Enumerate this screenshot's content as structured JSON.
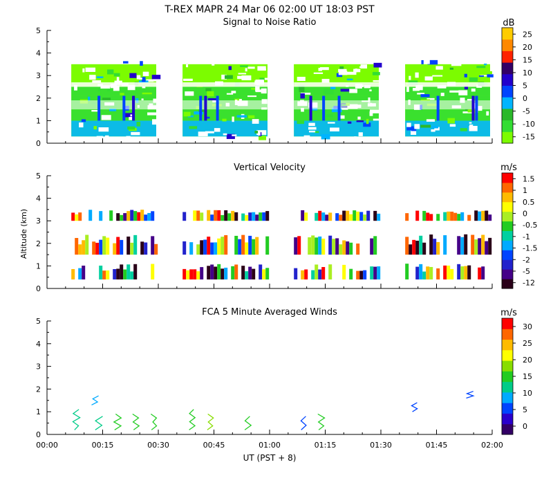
{
  "header": {
    "title": "T-REX   MAPR 24 Mar 06  02:00 UT  18:03  PST"
  },
  "shared_axes": {
    "xlabel": "UT  (PST + 8)",
    "ylabel": "Altitude (km)",
    "x_ticks": [
      "00:00",
      "00:15",
      "00:30",
      "00:45",
      "01:00",
      "01:15",
      "01:30",
      "01:45",
      "02:00"
    ],
    "x_range_min": [
      0,
      120
    ],
    "y_ticks": [
      "0",
      "1",
      "2",
      "3",
      "4",
      "5"
    ],
    "y_range_km": [
      0,
      5
    ]
  },
  "chart_data": [
    {
      "type": "heatmap",
      "title": "Signal to Noise Ratio",
      "units": "dB",
      "colorbar_ticks": [
        "25",
        "20",
        "15",
        "10",
        "5",
        "0",
        "-5",
        "-10",
        "-15"
      ],
      "colorbar_range": [
        -18,
        28
      ],
      "data_segments_min": [
        [
          6,
          30
        ],
        [
          36,
          60
        ],
        [
          66,
          90
        ],
        [
          96,
          120
        ]
      ],
      "altitude_coverage_km": [
        0.3,
        3.8
      ],
      "layers": [
        {
          "alt_km": [
            0.3,
            1.0
          ],
          "snr_db": 0
        },
        {
          "alt_km": [
            1.0,
            1.5
          ],
          "snr_db": -10
        },
        {
          "alt_km": [
            1.5,
            2.1
          ],
          "snr_db": -13
        },
        {
          "alt_km": [
            2.1,
            2.5
          ],
          "snr_db": -13
        },
        {
          "alt_km": [
            2.6,
            3.5
          ],
          "snr_db": -15
        }
      ]
    },
    {
      "type": "heatmap",
      "title": "Vertical Velocity",
      "units": "m/s",
      "colorbar_ticks": [
        "1.5",
        "1",
        "0.5",
        "0",
        "-0.5",
        "-1",
        "-1.5",
        "-2",
        "-5",
        "-12"
      ],
      "data_segments_min": [
        [
          6,
          30
        ],
        [
          36,
          60
        ],
        [
          66,
          90
        ],
        [
          96,
          120
        ]
      ],
      "altitude_coverage_km": [
        0.3,
        3.6
      ],
      "layers": [
        {
          "alt_km": [
            0.4,
            1.1
          ],
          "w_ms": -0.5
        },
        {
          "alt_km": [
            1.5,
            2.4
          ],
          "w_ms": -1
        },
        {
          "alt_km": [
            3.0,
            3.5
          ],
          "w_ms": 0
        }
      ]
    },
    {
      "type": "scatter",
      "title": "FCA 5 Minute Averaged Winds",
      "units": "m/s",
      "colorbar_ticks": [
        "30",
        "25",
        "20",
        "15",
        "10",
        "5",
        "0"
      ],
      "colorbar_range": [
        -2,
        31
      ],
      "wind_profiles": [
        {
          "t_min": 8,
          "alt_km": [
            0.2,
            1.1
          ],
          "speed_ms": 10
        },
        {
          "t_min": 13,
          "alt_km": [
            1.3,
            1.7
          ],
          "speed_ms": 8
        },
        {
          "t_min": 14,
          "alt_km": [
            0.2,
            0.8
          ],
          "speed_ms": 11
        },
        {
          "t_min": 19,
          "alt_km": [
            0.2,
            0.9
          ],
          "speed_ms": 15
        },
        {
          "t_min": 24,
          "alt_km": [
            0.2,
            0.9
          ],
          "speed_ms": 14
        },
        {
          "t_min": 29,
          "alt_km": [
            0.2,
            0.9
          ],
          "speed_ms": 13
        },
        {
          "t_min": 39,
          "alt_km": [
            0.2,
            1.1
          ],
          "speed_ms": 14
        },
        {
          "t_min": 44,
          "alt_km": [
            0.2,
            0.9
          ],
          "speed_ms": 18
        },
        {
          "t_min": 54,
          "alt_km": [
            0.2,
            0.8
          ],
          "speed_ms": 15
        },
        {
          "t_min": 69,
          "alt_km": [
            0.2,
            0.8
          ],
          "speed_ms": 5
        },
        {
          "t_min": 74,
          "alt_km": [
            0.2,
            0.9
          ],
          "speed_ms": 15
        },
        {
          "t_min": 99,
          "alt_km": [
            1.0,
            1.4
          ],
          "speed_ms": 6
        },
        {
          "t_min": 114,
          "alt_km": [
            1.6,
            1.9
          ],
          "speed_ms": 5
        }
      ]
    }
  ]
}
